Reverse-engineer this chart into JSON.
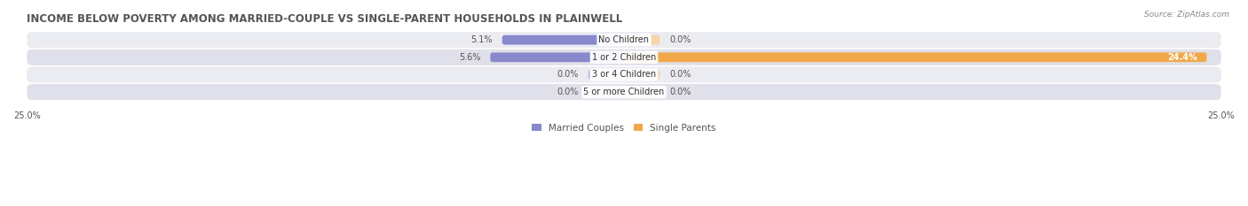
{
  "title": "INCOME BELOW POVERTY AMONG MARRIED-COUPLE VS SINGLE-PARENT HOUSEHOLDS IN PLAINWELL",
  "source": "Source: ZipAtlas.com",
  "categories": [
    "No Children",
    "1 or 2 Children",
    "3 or 4 Children",
    "5 or more Children"
  ],
  "married_values": [
    5.1,
    5.6,
    0.0,
    0.0
  ],
  "single_values": [
    0.0,
    24.4,
    0.0,
    0.0
  ],
  "xlim": 25.0,
  "married_color": "#8888cc",
  "single_color": "#f0a848",
  "married_color_light": "#c0c0e0",
  "single_color_light": "#f8d4a8",
  "row_bg_even": "#ebebf2",
  "row_bg_odd": "#e0e0ea",
  "label_fontsize": 7.0,
  "title_fontsize": 8.5,
  "value_fontsize": 7.0,
  "legend_fontsize": 7.5,
  "married_label": "Married Couples",
  "single_label": "Single Parents",
  "ghost_bar_width": 1.5
}
